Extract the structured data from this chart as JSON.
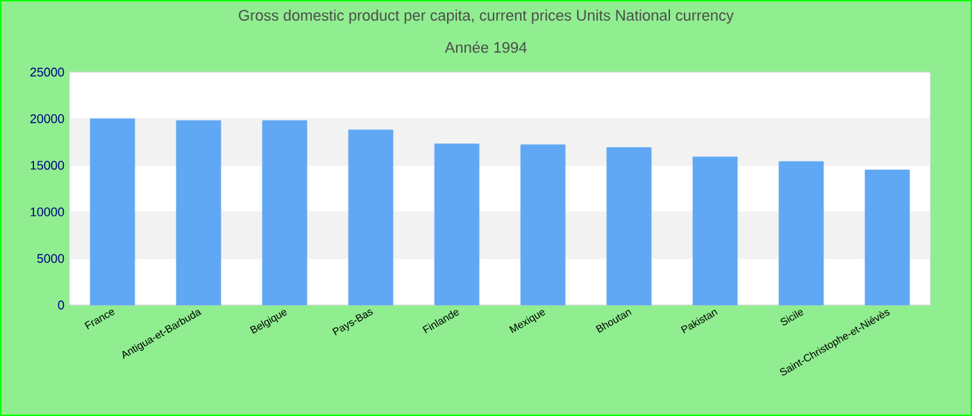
{
  "chart_data": {
    "type": "bar",
    "title": "Gross domestic product per capita, current prices Units National currency",
    "subtitle": "Année 1994",
    "categories": [
      "France",
      "Antigua-et-Barbuda",
      "Belgique",
      "Pays-Bas",
      "Finlande",
      "Mexique",
      "Bhoutan",
      "Pakistan",
      "Sicile",
      "Saint-Christophe-et-Niévès"
    ],
    "values": [
      20000,
      19800,
      19800,
      18800,
      17300,
      17200,
      16900,
      15900,
      15400,
      14500
    ],
    "color": "#60a8f4",
    "ylim": [
      0,
      25000
    ],
    "yticks": [
      0,
      5000,
      10000,
      15000,
      20000,
      25000
    ],
    "grid": "y"
  }
}
